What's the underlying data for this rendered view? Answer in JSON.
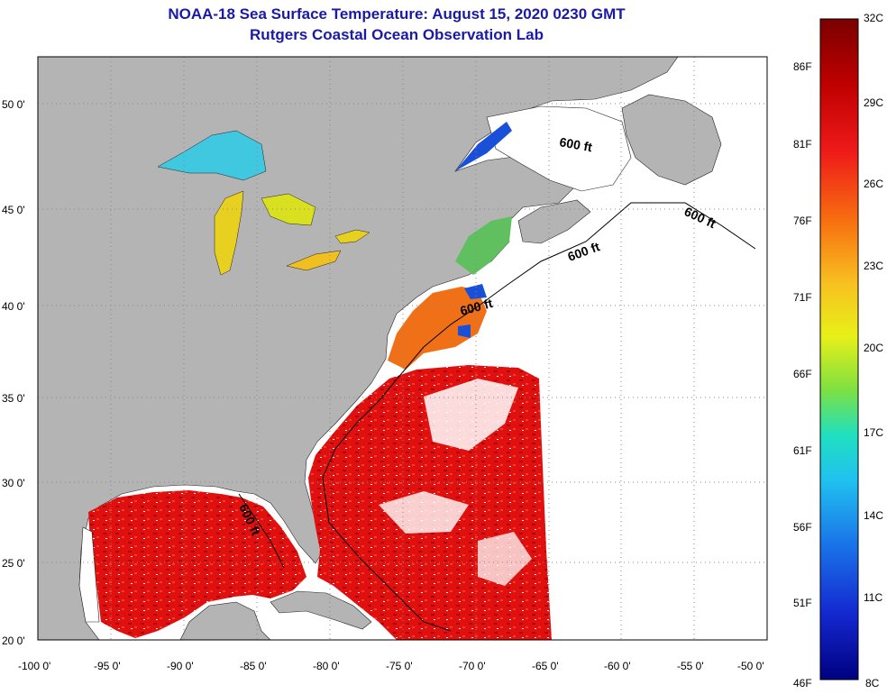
{
  "title": {
    "line1": "NOAA-18 Sea Surface Temperature:  August 15, 2020 0230 GMT",
    "line2": "Rutgers Coastal Ocean Observation Lab"
  },
  "map": {
    "lat_labels": [
      "50 0'",
      "45 0'",
      "40 0'",
      "35 0'",
      "30 0'",
      "25 0'",
      "20 0'"
    ],
    "lon_labels": [
      "-100 0'",
      "-95 0'",
      "-90 0'",
      "-85 0'",
      "-80 0'",
      "-75 0'",
      "-70 0'",
      "-65 0'",
      "-60 0'",
      "-55 0'",
      "-50 0'"
    ],
    "contour_labels": [
      "600 ft",
      "600 ft",
      "600 ft",
      "600 ft",
      "600 ft"
    ],
    "colors": {
      "land": "#b4b4b4",
      "water_nodata": "#ffffff",
      "title": "#1a1aa6"
    }
  },
  "colorbar": {
    "celsius_labels": [
      "32C",
      "29C",
      "26C",
      "23C",
      "20C",
      "17C",
      "14C",
      "11C",
      "8C"
    ],
    "fahrenheit_labels": [
      "86F",
      "81F",
      "76F",
      "71F",
      "66F",
      "61F",
      "56F",
      "51F",
      "46F"
    ],
    "gradient": [
      "#7a0000",
      "#c00000",
      "#ee1a1a",
      "#f86a10",
      "#f8c020",
      "#e8f018",
      "#80e040",
      "#20e0c0",
      "#20c0f0",
      "#1a70e8",
      "#1428d0",
      "#000080"
    ]
  }
}
